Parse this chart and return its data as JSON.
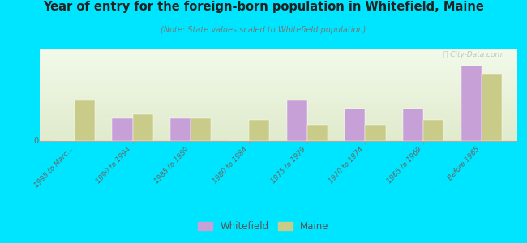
{
  "title": "Year of entry for the foreign-born population in Whitefield, Maine",
  "subtitle": "(Note: State values scaled to Whitefield population)",
  "categories": [
    "1995 to Marc...",
    "1990 to 1994",
    "1985 to 1989",
    "1980 to 1984",
    "1975 to 1979",
    "1970 to 1974",
    "1965 to 1969",
    "Before 1965"
  ],
  "whitefield_values": [
    0,
    2.0,
    2.0,
    0,
    3.5,
    2.8,
    2.8,
    6.5
  ],
  "maine_values": [
    3.5,
    2.3,
    2.0,
    1.8,
    1.4,
    1.4,
    1.8,
    5.8
  ],
  "whitefield_color": "#c8a0d8",
  "maine_color": "#c8cc88",
  "bg_color": "#00e5ff",
  "bar_width": 0.35,
  "ylim_max": 8.0,
  "legend_whitefield": "Whitefield",
  "legend_maine": "Maine",
  "watermark": "ⓒ City-Data.com"
}
